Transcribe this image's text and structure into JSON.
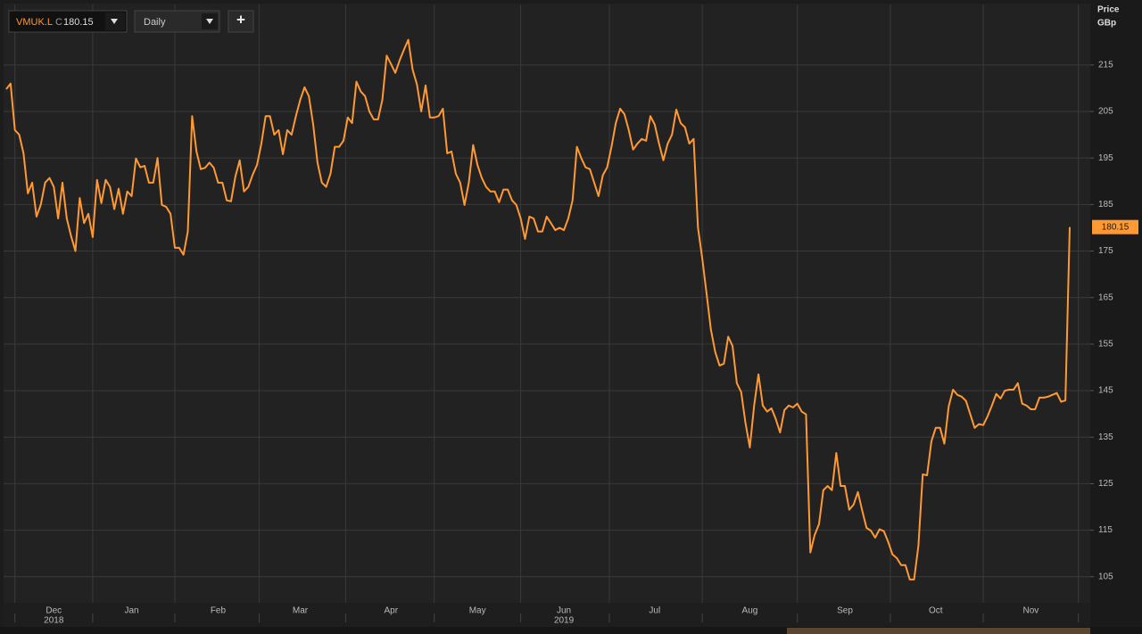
{
  "toolbar": {
    "symbol": "VMUK.L",
    "close_prefix": "C",
    "interval": "Daily",
    "add": "+"
  },
  "chart_data": {
    "type": "line",
    "axis_title": "Price",
    "axis_unit": "GBp",
    "categories": [
      null,
      null,
      null,
      null,
      null,
      null,
      null,
      null,
      null,
      null,
      null,
      "Dec",
      null,
      null,
      null,
      null,
      null,
      null,
      null,
      null,
      null,
      null,
      null,
      null,
      null,
      null,
      null,
      null,
      null,
      "Jan",
      null,
      null,
      null,
      null,
      null,
      null,
      null,
      null,
      null,
      null,
      null,
      null,
      null,
      null,
      null,
      null,
      null,
      null,
      null,
      "Feb",
      null,
      null,
      null,
      null,
      null,
      null,
      null,
      null,
      null,
      null,
      null,
      null,
      null,
      null,
      null,
      null,
      null,
      null,
      "Mar",
      null,
      null,
      null,
      null,
      null,
      null,
      null,
      null,
      null,
      null,
      null,
      null,
      null,
      null,
      null,
      null,
      null,
      null,
      null,
      null,
      "Apr",
      null,
      null,
      null,
      null,
      null,
      null,
      null,
      null,
      null,
      null,
      null,
      null,
      null,
      null,
      null,
      null,
      null,
      null,
      null,
      "May",
      null,
      null,
      null,
      null,
      null,
      null,
      null,
      null,
      null,
      null,
      null,
      null,
      null,
      null,
      null,
      null,
      null,
      null,
      null,
      "Jun",
      null,
      null,
      null,
      null,
      null,
      null,
      null,
      null,
      null,
      null,
      null,
      null,
      null,
      null,
      null,
      null,
      null,
      null,
      null,
      null,
      "Jul",
      null,
      null,
      null,
      null,
      null,
      null,
      null,
      null,
      null,
      null,
      null,
      null,
      null,
      null,
      null,
      null,
      null,
      null,
      null,
      null,
      null,
      "Aug",
      null,
      null,
      null,
      null,
      null,
      null,
      null,
      null,
      null,
      null,
      null,
      null,
      null,
      null,
      null,
      null,
      null,
      null,
      null,
      null,
      null,
      "Sep",
      null,
      null,
      null,
      null,
      null,
      null,
      null,
      null,
      null,
      null,
      null,
      null,
      null,
      null,
      null,
      null,
      null,
      null,
      null,
      null,
      "Oct",
      null,
      null,
      null,
      null,
      null,
      null,
      null,
      null,
      null,
      null,
      null,
      null,
      null,
      null,
      null,
      null,
      null,
      null,
      null,
      null,
      null,
      "Nov",
      null,
      null,
      null,
      null,
      null,
      null,
      null,
      null,
      null
    ],
    "category_years": [
      null,
      null,
      null,
      null,
      null,
      null,
      null,
      null,
      null,
      null,
      null,
      "2018",
      null,
      null,
      null,
      null,
      null,
      null,
      null,
      null,
      null,
      null,
      null,
      null,
      null,
      null,
      null,
      null,
      null,
      null,
      null,
      null,
      null,
      null,
      null,
      null,
      null,
      null,
      null,
      null,
      null,
      null,
      null,
      null,
      null,
      null,
      null,
      null,
      null,
      null,
      null,
      null,
      null,
      null,
      null,
      null,
      null,
      null,
      null,
      null,
      null,
      null,
      null,
      null,
      null,
      null,
      null,
      null,
      null,
      null,
      null,
      null,
      null,
      null,
      null,
      null,
      null,
      null,
      null,
      null,
      null,
      null,
      null,
      null,
      null,
      null,
      null,
      null,
      null,
      null,
      null,
      null,
      null,
      null,
      null,
      null,
      null,
      null,
      null,
      null,
      null,
      null,
      null,
      null,
      null,
      null,
      null,
      null,
      null,
      null,
      null,
      null,
      null,
      null,
      null,
      null,
      null,
      null,
      null,
      null,
      null,
      null,
      null,
      null,
      null,
      null,
      null,
      null,
      null,
      "2019",
      null,
      null,
      null,
      null,
      null,
      null,
      null,
      null,
      null,
      null,
      null,
      null,
      null,
      null,
      null,
      null,
      null,
      null,
      null,
      null,
      null,
      null,
      null,
      null,
      null,
      null,
      null,
      null,
      null,
      null,
      null,
      null,
      null,
      null,
      null,
      null,
      null,
      null,
      null,
      null,
      null,
      null,
      null,
      null,
      null,
      null,
      null,
      null,
      null,
      null,
      null,
      null,
      null,
      null,
      null,
      null,
      null,
      null,
      null,
      null,
      null,
      null,
      null,
      null,
      null,
      null,
      null,
      null,
      null,
      null,
      null,
      null,
      null,
      null,
      null,
      null,
      null,
      null,
      null,
      null,
      null,
      null,
      null,
      null,
      null,
      null,
      null,
      null,
      null,
      null,
      null,
      null,
      null,
      null,
      null,
      null,
      null,
      null,
      null,
      null,
      null,
      null,
      null,
      null,
      null,
      null,
      null,
      null,
      null,
      null,
      null,
      null,
      null,
      null,
      null,
      null,
      null
    ],
    "series": [
      {
        "name": "VMUK.L",
        "color": "#ff9933",
        "values": [
          209.8,
          211,
          201,
          200,
          196,
          187.4,
          189.7,
          182.4,
          185,
          189.7,
          190.7,
          188.8,
          182,
          189.7,
          182,
          178.2,
          175,
          186.4,
          181,
          183,
          178,
          190.3,
          185.3,
          190.3,
          188.8,
          184,
          188.4,
          183,
          187.8,
          186.8,
          194.9,
          193,
          193.3,
          189.7,
          189.7,
          195,
          184.9,
          184.5,
          183,
          175.7,
          175.7,
          174.2,
          179.2,
          204,
          196.4,
          192.6,
          192.9,
          194,
          192.9,
          189.7,
          189.7,
          185.9,
          185.7,
          191,
          194.5,
          187.8,
          188.8,
          191.4,
          193.5,
          198,
          204,
          204,
          200,
          201,
          195.8,
          201,
          200,
          204,
          207.5,
          210.2,
          208.3,
          202.2,
          194,
          189.7,
          188.8,
          191.6,
          197.4,
          197.4,
          198.7,
          203.7,
          202.5,
          211.4,
          209.3,
          208.3,
          205,
          203.3,
          203.3,
          207.5,
          217,
          215.2,
          213.3,
          216,
          218.3,
          220.4,
          214,
          210.8,
          205,
          210.6,
          203.7,
          203.7,
          204,
          205.6,
          196,
          196.4,
          191.6,
          189.7,
          184.9,
          189.7,
          197.8,
          193.5,
          190.7,
          188.8,
          187.8,
          187.8,
          185.5,
          188.2,
          188.2,
          185.9,
          184.9,
          182,
          177.6,
          182.4,
          182,
          179.2,
          179.2,
          182.4,
          181,
          179.5,
          180,
          179.5,
          182,
          185.9,
          197.4,
          195,
          193,
          192.6,
          189.7,
          186.8,
          191.3,
          193,
          197.4,
          202.5,
          205.6,
          204.4,
          201,
          196.8,
          198.1,
          199.1,
          198.7,
          204,
          202.2,
          198.1,
          194.5,
          198.1,
          200,
          205.4,
          202.5,
          201.6,
          198.1,
          199.1,
          180.1,
          173.4,
          165.8,
          158.1,
          153.3,
          150.4,
          150.8,
          156.6,
          154.6,
          146.6,
          144.7,
          138,
          132.8,
          141.8,
          148.5,
          141.8,
          140.5,
          141.2,
          138.9,
          136,
          140.8,
          141.8,
          141.4,
          142.2,
          140.5,
          139.9,
          110.2,
          114,
          116.3,
          123.6,
          124.5,
          123.6,
          131.6,
          124.5,
          124.5,
          119.4,
          120.5,
          123.2,
          119.2,
          115.5,
          114.9,
          113.4,
          115.2,
          114.8,
          112.5,
          109.8,
          109,
          107.5,
          107.5,
          104.4,
          104.4,
          111.7,
          127,
          126.8,
          134.1,
          137,
          137,
          133.6,
          141.6,
          145.2,
          144.1,
          143.7,
          142.8,
          139.9,
          137,
          137.8,
          137.6,
          139.5,
          141.8,
          144.3,
          143.3,
          145,
          145.2,
          145.2,
          146.6,
          142.2,
          141.8,
          141,
          141,
          143.5,
          143.5,
          143.7,
          144.1,
          144.5,
          142.6,
          142.9,
          180.15
        ]
      }
    ],
    "ylim": [
      99.4,
      228
    ],
    "yticks": [
      105,
      115,
      125,
      135,
      145,
      155,
      165,
      175,
      185,
      195,
      205,
      215
    ],
    "grid": true
  }
}
